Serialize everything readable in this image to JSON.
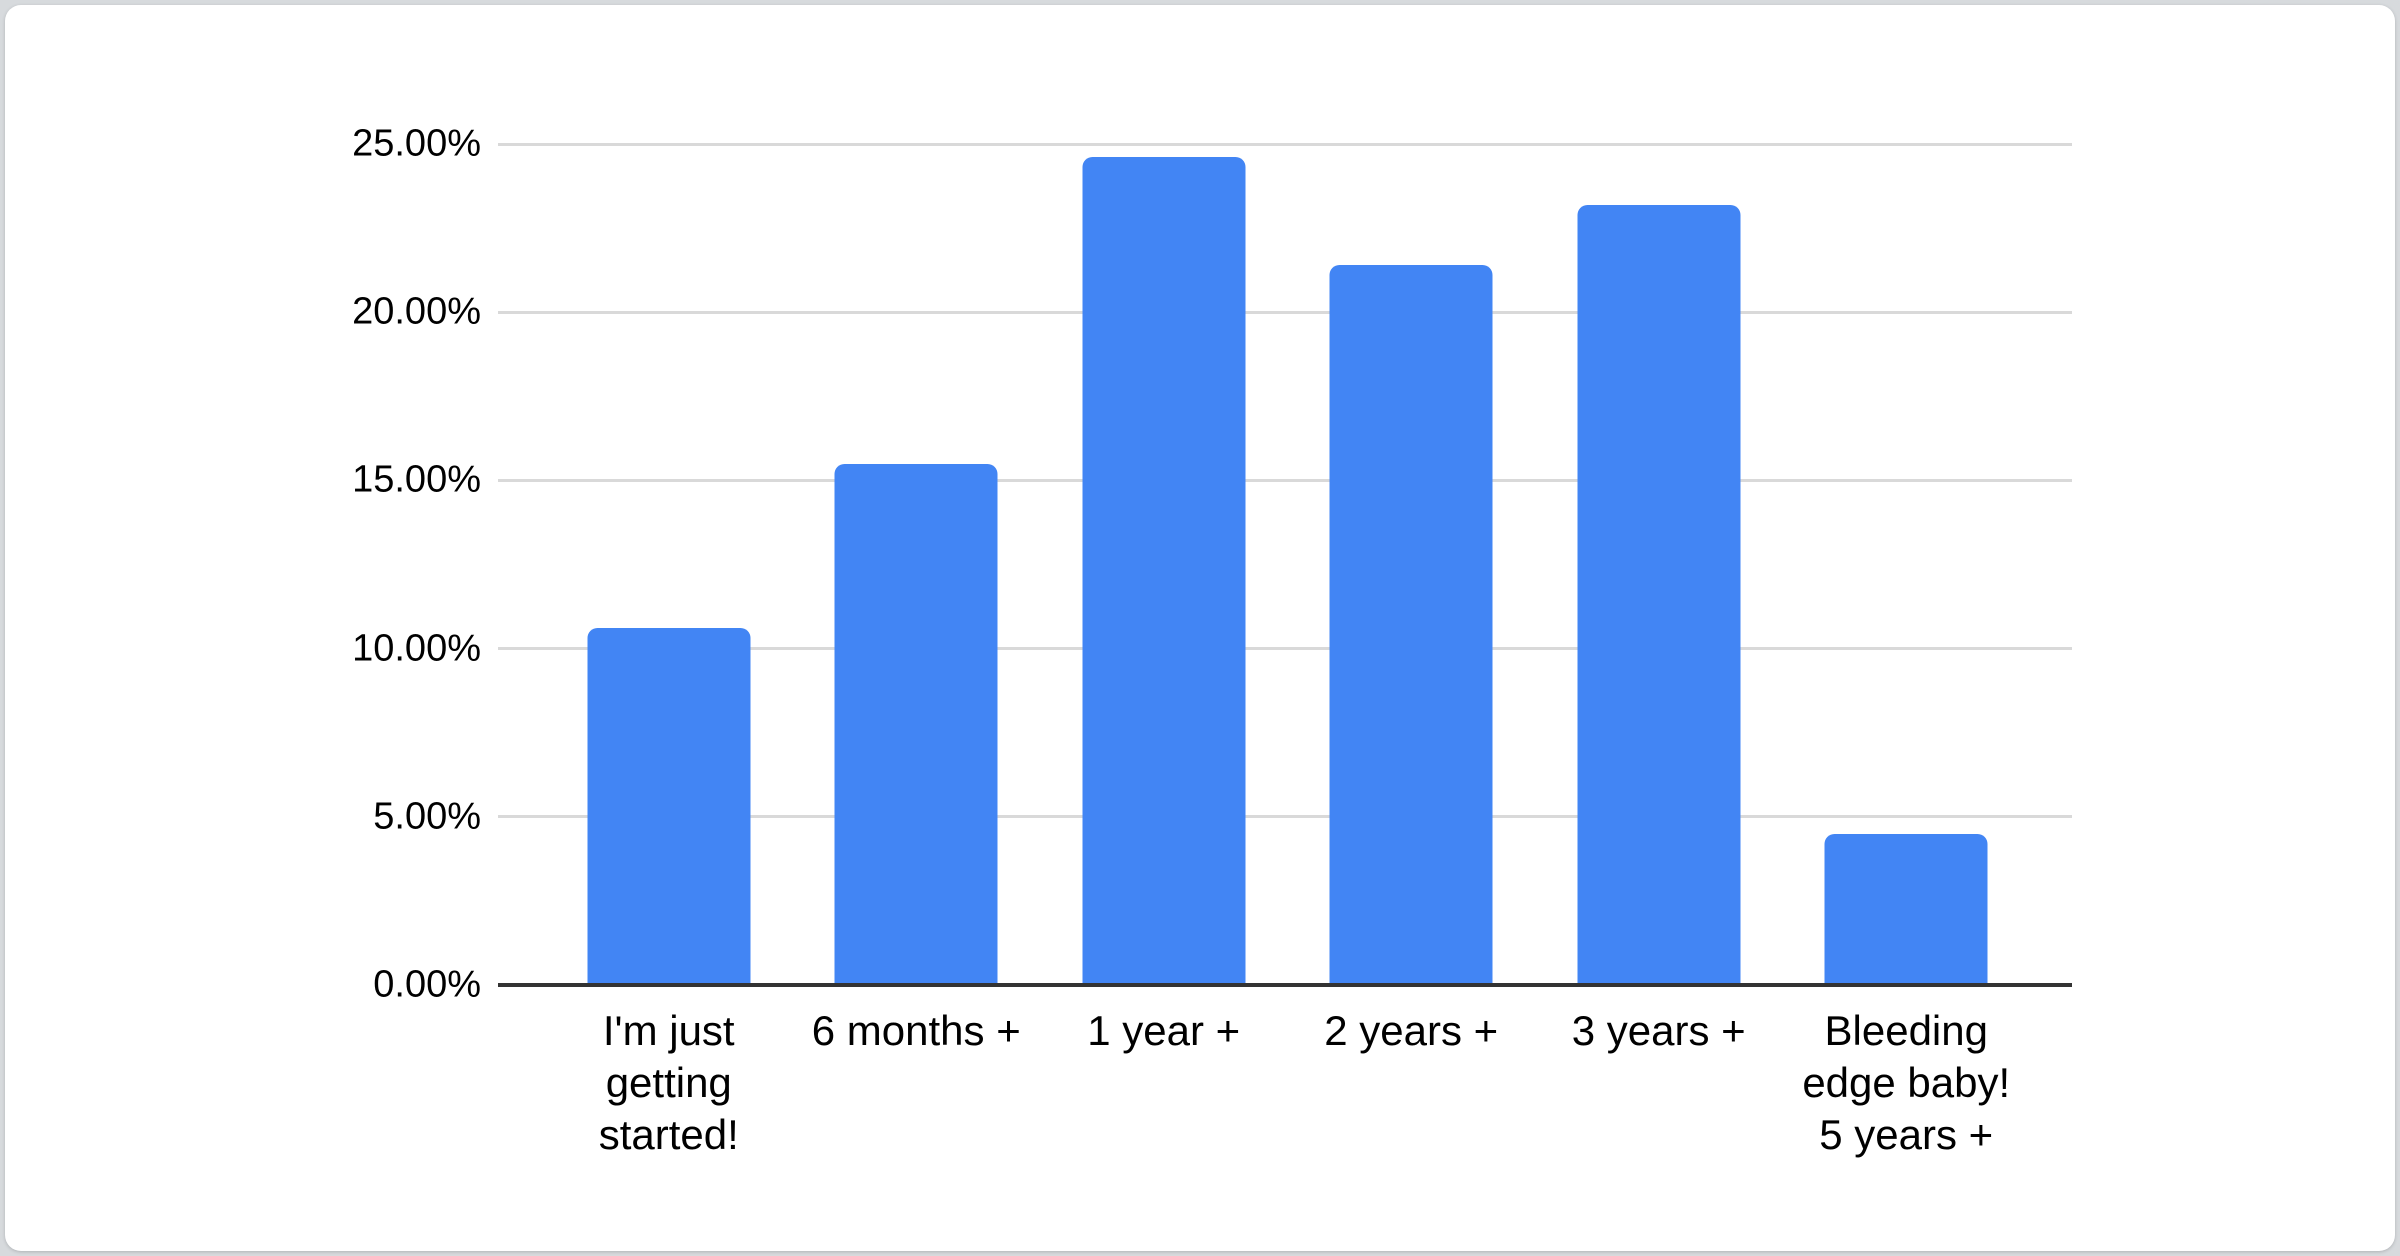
{
  "page": {
    "outer_background": "#d7dadd",
    "card_background": "#ffffff"
  },
  "chart_data": {
    "type": "bar",
    "title": "",
    "xlabel": "",
    "ylabel": "",
    "categories": [
      "I'm just\ngetting\nstarted!",
      "6 months +",
      "1 year +",
      "2 years +",
      "3 years +",
      "Bleeding\nedge baby!\n5 years +"
    ],
    "values": [
      10.6,
      15.5,
      24.6,
      21.4,
      23.2,
      4.5
    ],
    "y_ticks": [
      "0.00%",
      "5.00%",
      "10.00%",
      "15.00%",
      "20.00%",
      "25.00%"
    ],
    "ylim": [
      0,
      25
    ],
    "y_max": 25,
    "grid": true,
    "legend": "none",
    "bar_color": "#4285f4",
    "gridline_color": "#d9d9d9",
    "axis_line_color": "#333333",
    "label_color": "#000000"
  }
}
